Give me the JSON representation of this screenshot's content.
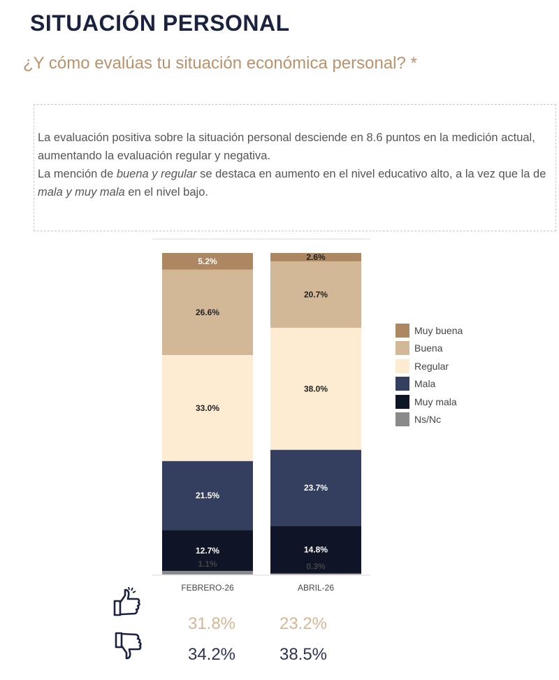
{
  "header": {
    "title": "SITUACIÓN PERSONAL",
    "question": "¿Y cómo evalúas tu situación económica personal? *"
  },
  "note": {
    "p1": "La evaluación positiva sobre la situación personal desciende en 8.6 puntos en la medición actual, aumentando la evaluación regular y negativa.",
    "p2_a": "La mención de ",
    "p2_b": "buena y regular",
    "p2_c": " se destaca en aumento en el nivel educativo alto, a la vez que la de ",
    "p2_d": "mala y muy mala",
    "p2_e": " en el nivel bajo."
  },
  "chart_data": {
    "type": "bar",
    "stacked": true,
    "categories": [
      "FEBRERO-26",
      "ABRIL-26"
    ],
    "series": [
      {
        "name": "Muy buena",
        "color": "#ac8761",
        "values": [
          5.2,
          2.6
        ]
      },
      {
        "name": "Buena",
        "color": "#d3b898",
        "values": [
          26.6,
          20.7
        ]
      },
      {
        "name": "Regular",
        "color": "#fdebd2",
        "values": [
          33.0,
          38.0
        ]
      },
      {
        "name": "Mala",
        "color": "#343f5f",
        "values": [
          21.5,
          23.7
        ]
      },
      {
        "name": "Muy mala",
        "color": "#0f1426",
        "values": [
          12.7,
          14.8
        ]
      },
      {
        "name": "Ns/Nc",
        "color": "#8a8a8a",
        "values": [
          1.1,
          0.3
        ]
      }
    ],
    "labels": [
      [
        "5.2%",
        "2.6%"
      ],
      [
        "26.6%",
        "20.7%"
      ],
      [
        "33.0%",
        "38.0%"
      ],
      [
        "21.5%",
        "23.7%"
      ],
      [
        "12.7%",
        "14.8%"
      ],
      [
        "1.1%",
        "0.3%"
      ]
    ],
    "legend_position": "right"
  },
  "summary": {
    "positive": [
      "31.8%",
      "23.2%"
    ],
    "negative": [
      "34.2%",
      "38.5%"
    ],
    "positive_color": "#d3b898",
    "negative_color": "#2d3452",
    "positive_icon": "thumbs-up-icon",
    "negative_icon": "thumbs-down-icon"
  }
}
